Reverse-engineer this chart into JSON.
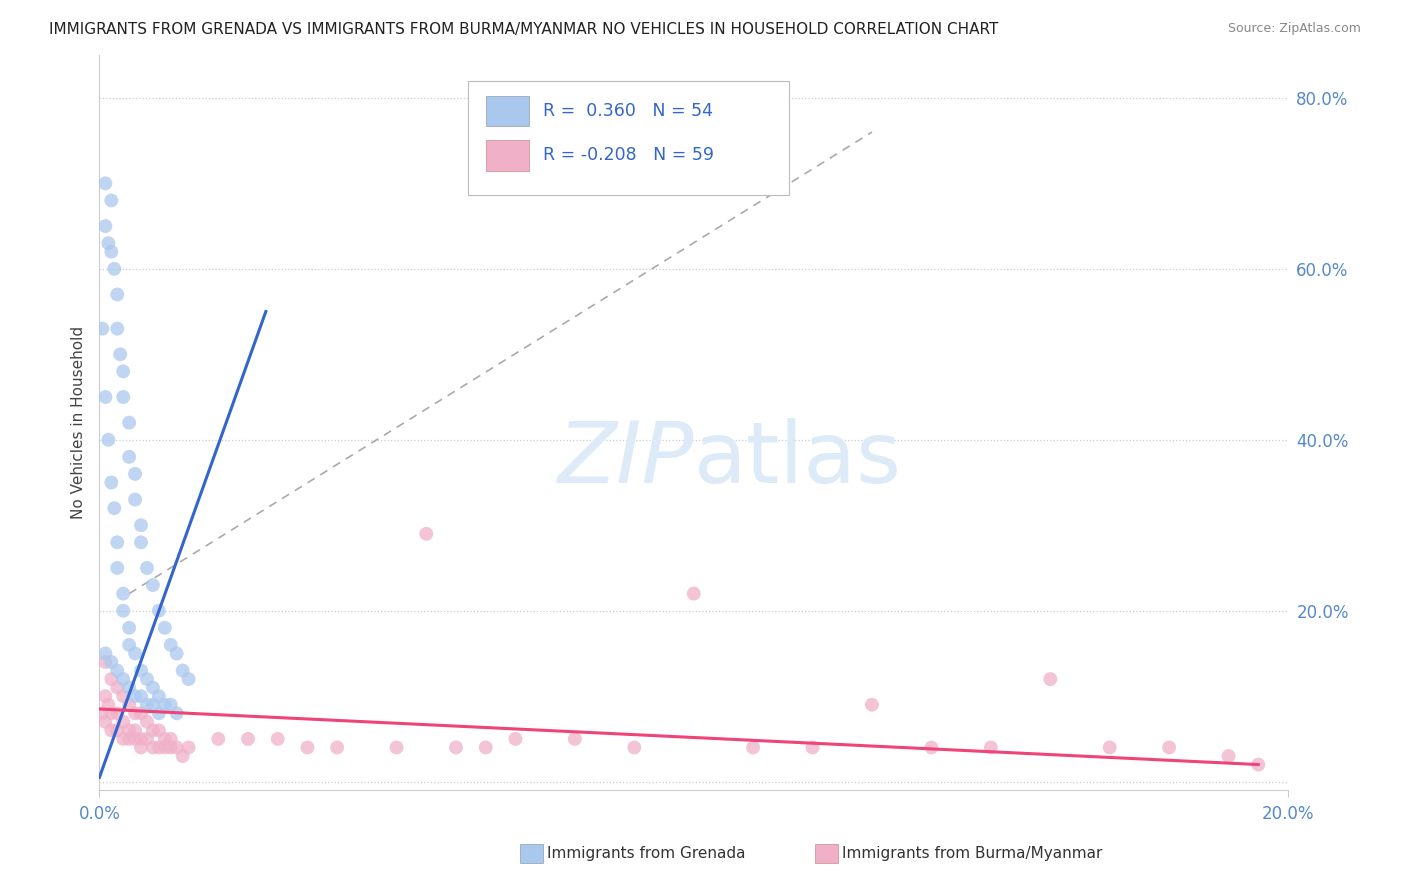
{
  "title": "IMMIGRANTS FROM GRENADA VS IMMIGRANTS FROM BURMA/MYANMAR NO VEHICLES IN HOUSEHOLD CORRELATION CHART",
  "source": "Source: ZipAtlas.com",
  "ylabel": "No Vehicles in Household",
  "legend_R1": "0.360",
  "legend_N1": "54",
  "legend_R2": "-0.208",
  "legend_N2": "59",
  "color_blue": "#aac8ee",
  "color_pink": "#f0b0c8",
  "color_blue_line": "#3366cc",
  "color_pink_line": "#ee4477",
  "color_blue_text": "#3366cc",
  "color_tick": "#5588cc",
  "background": "#ffffff",
  "xlim": [
    0.0,
    0.2
  ],
  "ylim": [
    -0.01,
    0.85
  ],
  "ytick_vals": [
    0.0,
    0.2,
    0.4,
    0.6,
    0.8
  ],
  "ytick_labels": [
    "",
    "20.0%",
    "40.0%",
    "60.0%",
    "80.0%"
  ],
  "grenada_x": [
    0.0005,
    0.001,
    0.001,
    0.0015,
    0.002,
    0.002,
    0.0025,
    0.003,
    0.003,
    0.0035,
    0.004,
    0.004,
    0.005,
    0.005,
    0.006,
    0.006,
    0.007,
    0.007,
    0.008,
    0.009,
    0.01,
    0.011,
    0.012,
    0.013,
    0.014,
    0.015,
    0.001,
    0.0015,
    0.002,
    0.0025,
    0.003,
    0.003,
    0.004,
    0.004,
    0.005,
    0.005,
    0.006,
    0.007,
    0.008,
    0.009,
    0.01,
    0.011,
    0.012,
    0.013,
    0.001,
    0.002,
    0.003,
    0.004,
    0.005,
    0.006,
    0.007,
    0.008,
    0.009,
    0.01
  ],
  "grenada_y": [
    0.53,
    0.7,
    0.65,
    0.63,
    0.68,
    0.62,
    0.6,
    0.57,
    0.53,
    0.5,
    0.48,
    0.45,
    0.42,
    0.38,
    0.36,
    0.33,
    0.3,
    0.28,
    0.25,
    0.23,
    0.2,
    0.18,
    0.16,
    0.15,
    0.13,
    0.12,
    0.45,
    0.4,
    0.35,
    0.32,
    0.28,
    0.25,
    0.22,
    0.2,
    0.18,
    0.16,
    0.15,
    0.13,
    0.12,
    0.11,
    0.1,
    0.09,
    0.09,
    0.08,
    0.15,
    0.14,
    0.13,
    0.12,
    0.11,
    0.1,
    0.1,
    0.09,
    0.09,
    0.08
  ],
  "burma_x": [
    0.0005,
    0.001,
    0.001,
    0.0015,
    0.002,
    0.002,
    0.003,
    0.003,
    0.004,
    0.004,
    0.005,
    0.005,
    0.006,
    0.006,
    0.007,
    0.007,
    0.008,
    0.009,
    0.01,
    0.011,
    0.012,
    0.013,
    0.014,
    0.015,
    0.02,
    0.025,
    0.03,
    0.035,
    0.04,
    0.05,
    0.055,
    0.06,
    0.065,
    0.07,
    0.08,
    0.09,
    0.1,
    0.11,
    0.12,
    0.13,
    0.14,
    0.15,
    0.16,
    0.17,
    0.18,
    0.19,
    0.195,
    0.001,
    0.002,
    0.003,
    0.004,
    0.005,
    0.006,
    0.007,
    0.008,
    0.009,
    0.01,
    0.011,
    0.012
  ],
  "burma_y": [
    0.08,
    0.1,
    0.07,
    0.09,
    0.08,
    0.06,
    0.08,
    0.06,
    0.07,
    0.05,
    0.06,
    0.05,
    0.06,
    0.05,
    0.05,
    0.04,
    0.05,
    0.04,
    0.04,
    0.04,
    0.04,
    0.04,
    0.03,
    0.04,
    0.05,
    0.05,
    0.05,
    0.04,
    0.04,
    0.04,
    0.29,
    0.04,
    0.04,
    0.05,
    0.05,
    0.04,
    0.22,
    0.04,
    0.04,
    0.09,
    0.04,
    0.04,
    0.12,
    0.04,
    0.04,
    0.03,
    0.02,
    0.14,
    0.12,
    0.11,
    0.1,
    0.09,
    0.08,
    0.08,
    0.07,
    0.06,
    0.06,
    0.05,
    0.05
  ],
  "grenada_line_x": [
    0.0,
    0.028
  ],
  "grenada_line_y": [
    0.005,
    0.55
  ],
  "burma_line_x": [
    0.0,
    0.195
  ],
  "burma_line_y": [
    0.085,
    0.02
  ],
  "dash_line_x": [
    0.005,
    0.13
  ],
  "dash_line_y": [
    0.22,
    0.76
  ]
}
